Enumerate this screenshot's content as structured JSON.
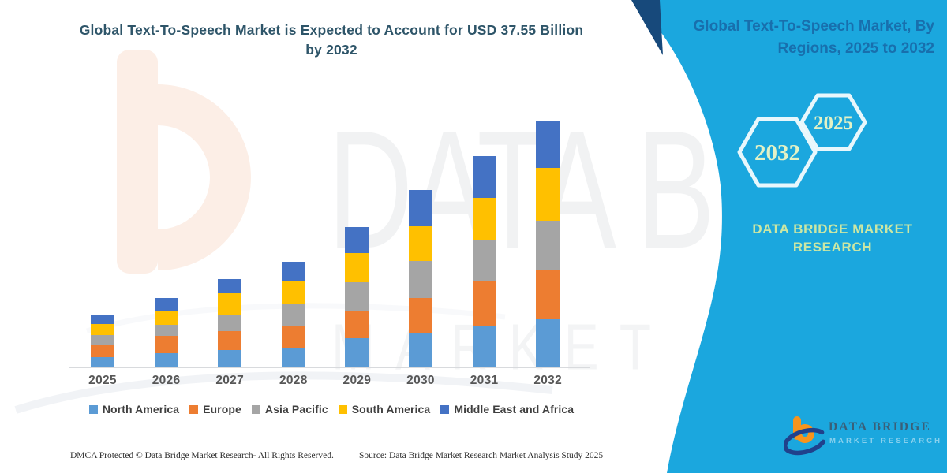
{
  "header": {
    "title_line1": "Global Text-To-Speech Market is Expected to Account for USD 37.55 Billion",
    "title_line2": "by 2032"
  },
  "side_panel": {
    "heading_line1": "Global Text-To-Speech Market, By",
    "heading_line2": "Regions, 2025 to 2032",
    "hexagons": [
      {
        "label": "2032"
      },
      {
        "label": "2025"
      }
    ],
    "brand_line1": "DATA BRIDGE MARKET",
    "brand_line2": "RESEARCH",
    "panel_color": "#1BA7DE",
    "fold_accent_color": "#17497B"
  },
  "watermark": {
    "text": "DATA BRIDGE",
    "subtext": "MARKET RESEARCH"
  },
  "chart_data": {
    "type": "bar",
    "stacked": true,
    "title": "Global Text-To-Speech Market is Expected to Account for USD 37.55 Billion by 2032",
    "unit": "USD Billion",
    "categories": [
      "2025",
      "2026",
      "2027",
      "2028",
      "2029",
      "2030",
      "2031",
      "2032"
    ],
    "series": [
      {
        "name": "North America",
        "color": "#5B9BD5",
        "values": [
          1.5,
          2.1,
          2.5,
          2.9,
          4.3,
          5.1,
          6.2,
          7.2
        ]
      },
      {
        "name": "Europe",
        "color": "#ED7D31",
        "values": [
          1.9,
          2.6,
          3.0,
          3.4,
          4.1,
          5.4,
          6.8,
          7.7
        ]
      },
      {
        "name": "Asia Pacific",
        "color": "#A5A5A5",
        "values": [
          1.5,
          1.7,
          2.4,
          3.4,
          4.5,
          5.7,
          6.5,
          7.5
        ]
      },
      {
        "name": "South America",
        "color": "#FFC000",
        "values": [
          1.6,
          2.1,
          3.3,
          3.4,
          4.5,
          5.3,
          6.4,
          8.0
        ]
      },
      {
        "name": "Middle East and Africa",
        "color": "#4472C4",
        "values": [
          1.5,
          2.0,
          2.2,
          3.0,
          4.0,
          5.5,
          6.3,
          7.15
        ]
      }
    ],
    "totals": [
      8.0,
      10.5,
      13.4,
      16.1,
      21.4,
      27.0,
      32.2,
      37.55
    ],
    "highlight_value_2032": 37.55,
    "ylim": [
      0,
      40
    ],
    "grid": false,
    "legend_position": "bottom"
  },
  "footer": {
    "dmca": "DMCA Protected © Data Bridge Market Research-  All Rights Reserved.",
    "source": "Source: Data Bridge Market Research  Market Analysis Study 2025"
  },
  "logo": {
    "name": "DATA BRIDGE",
    "tagline": "MARKET RESEARCH",
    "orange": "#F7941D",
    "navy": "#20418C"
  }
}
